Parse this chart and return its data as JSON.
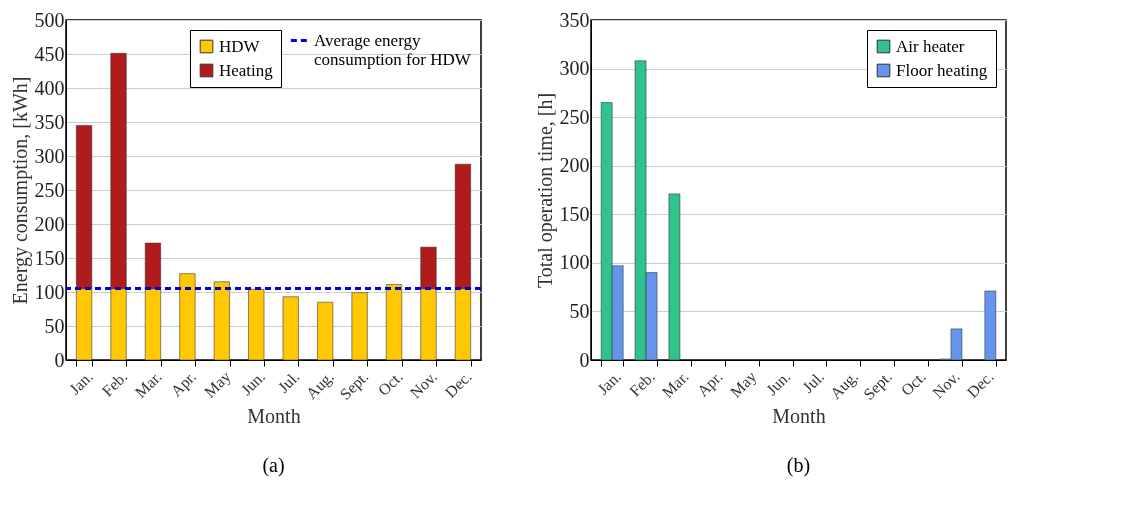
{
  "chart_data": [
    {
      "type": "bar",
      "stacked": true,
      "xlabel": "Month",
      "ylabel": "Energy consumption, [kWh]",
      "categories": [
        "Jan.",
        "Feb.",
        "Mar.",
        "Apr.",
        "May",
        "Jun.",
        "Jul.",
        "Aug.",
        "Sept.",
        "Oct.",
        "Nov.",
        "Dec."
      ],
      "series": [
        {
          "name": "HDW",
          "color": "#ffc800",
          "values": [
            105,
            105,
            105,
            127,
            115,
            104,
            93,
            85,
            99,
            111,
            105,
            105
          ]
        },
        {
          "name": "Heating",
          "color": "#b01c1c",
          "values": [
            240,
            346,
            67,
            null,
            null,
            null,
            null,
            null,
            null,
            null,
            61,
            183
          ]
        }
      ],
      "ref_lines": [
        {
          "axis": "y",
          "value": 105,
          "label": "Average energy consumption for HDW",
          "color": "#0000dd",
          "line_style": "dashed"
        }
      ],
      "ylim": [
        0,
        500
      ],
      "yticks": [
        0,
        50,
        100,
        150,
        200,
        250,
        300,
        350,
        400,
        450,
        500
      ],
      "grid": "y",
      "legend": "top right",
      "annotations": [
        "(a)"
      ]
    },
    {
      "type": "bar",
      "xlabel": "Month",
      "ylabel": "Total operation time, [h]",
      "categories": [
        "Jan.",
        "Feb.",
        "Mar.",
        "Apr.",
        "May",
        "Jun.",
        "Jul.",
        "Aug.",
        "Sept.",
        "Oct.",
        "Nov.",
        "Dec."
      ],
      "series": [
        {
          "name": "Air heater",
          "color": "#2ec48c",
          "values": [
            265,
            308,
            171,
            0,
            0,
            0,
            0,
            0,
            0,
            0,
            1,
            0
          ]
        },
        {
          "name": "Floor heating",
          "color": "#6495ed",
          "values": [
            97,
            90,
            0,
            0,
            0,
            0,
            0,
            0,
            0,
            0,
            32,
            71
          ]
        }
      ],
      "ylim": [
        0,
        350
      ],
      "yticks": [
        0,
        50,
        100,
        150,
        200,
        250,
        300,
        350
      ],
      "grid": "y",
      "legend": "top right",
      "annotations": [
        "(b)"
      ]
    }
  ]
}
